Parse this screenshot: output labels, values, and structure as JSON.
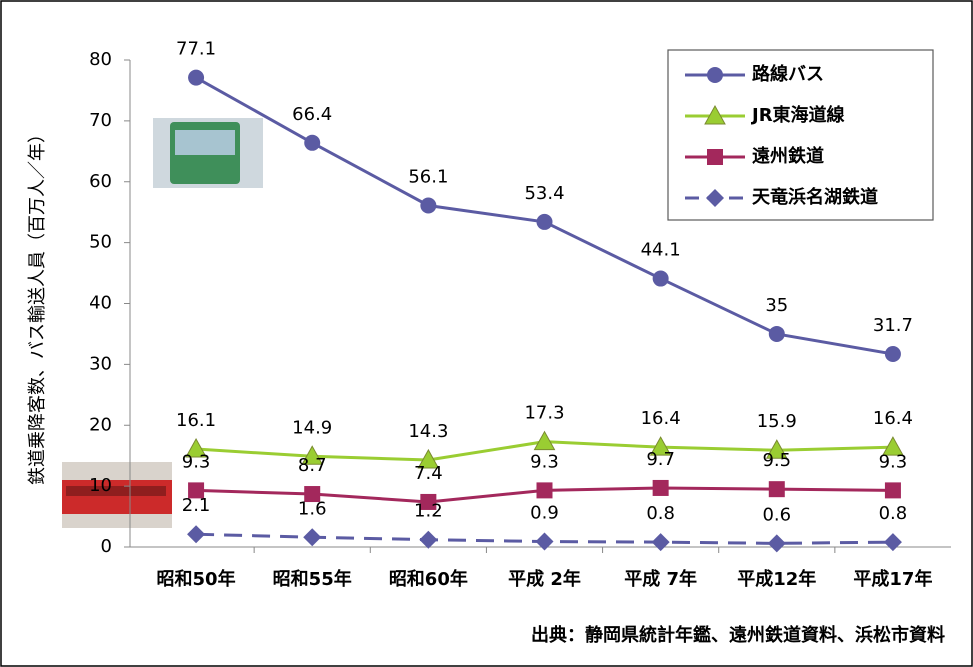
{
  "chart_data": {
    "type": "line",
    "y_label": "鉄道乗降客数、バス輸送人員（百万人／年）",
    "source": "出典：静岡県統計年鑑、遠州鉄道資料、浜松市資料",
    "categories": [
      "昭和50年",
      "昭和55年",
      "昭和60年",
      "平成 2年",
      "平成 7年",
      "平成12年",
      "平成17年"
    ],
    "series": [
      {
        "name": "路線バス",
        "color": "#5b5ba3",
        "marker": "circle",
        "dashed": false,
        "values": [
          77.1,
          66.4,
          56.1,
          53.4,
          44.1,
          35,
          31.7
        ]
      },
      {
        "name": "JR東海道線",
        "color": "#9acd32",
        "marker": "triangle",
        "dashed": false,
        "values": [
          16.1,
          14.9,
          14.3,
          17.3,
          16.4,
          15.9,
          16.4
        ]
      },
      {
        "name": "遠州鉄道",
        "color": "#a3285c",
        "marker": "square",
        "dashed": false,
        "values": [
          9.3,
          8.7,
          7.4,
          9.3,
          9.7,
          9.5,
          9.3
        ]
      },
      {
        "name": "天竜浜名湖鉄道",
        "color": "#5b5ba3",
        "marker": "diamond",
        "dashed": true,
        "values": [
          2.1,
          1.6,
          1.2,
          0.9,
          0.8,
          0.6,
          0.8
        ]
      }
    ],
    "ylim": [
      0,
      80
    ],
    "yticks": [
      0,
      10,
      20,
      30,
      40,
      50,
      60,
      70,
      80
    ],
    "grid": false,
    "legend": "top-right"
  }
}
